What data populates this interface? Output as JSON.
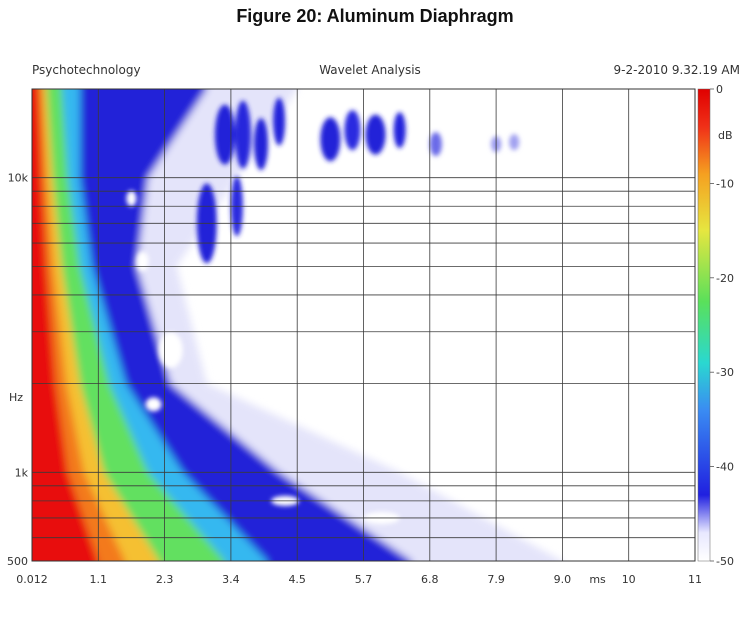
{
  "figure_title": "Figure 20: Aluminum Diaphragm",
  "header": {
    "left": "Psychotechnology",
    "center": "Wavelet Analysis",
    "right": "9-2-2010 9.32.19 AM"
  },
  "colors": {
    "scale": [
      "#ffffff",
      "#1a1adc",
      "#2f7cf0",
      "#2ad8c8",
      "#5be05a",
      "#e0e63a",
      "#f5a020",
      "#f03018",
      "#e00000"
    ]
  },
  "chart_data": {
    "type": "heatmap",
    "title": "",
    "xlabel": "ms",
    "ylabel": "Hz",
    "x_ticks": [
      {
        "value": 0.012,
        "label": "0.012"
      },
      {
        "value": 1.1,
        "label": "1.1"
      },
      {
        "value": 2.3,
        "label": "2.3"
      },
      {
        "value": 3.4,
        "label": "3.4"
      },
      {
        "value": 4.5,
        "label": "4.5"
      },
      {
        "value": 5.7,
        "label": "5.7"
      },
      {
        "value": 6.8,
        "label": "6.8"
      },
      {
        "value": 7.9,
        "label": "7.9"
      },
      {
        "value": 9.0,
        "label": "9.0"
      },
      {
        "value": 10,
        "label": "10"
      },
      {
        "value": 11,
        "label": "11"
      }
    ],
    "xlim": [
      0.012,
      11
    ],
    "y_tick_labels": [
      {
        "value": 500,
        "label": "500"
      },
      {
        "value": 1000,
        "label": "1k"
      },
      {
        "value": 10000,
        "label": "10k"
      }
    ],
    "y_gridlines": [
      600,
      700,
      800,
      900,
      1000,
      2000,
      3000,
      4000,
      5000,
      6000,
      7000,
      8000,
      9000,
      10000
    ],
    "ylim": [
      500,
      20000
    ],
    "y_scale": "log",
    "colorbar": {
      "label": "dB",
      "range": [
        -50,
        0
      ],
      "ticks": [
        {
          "value": 0,
          "label": "0"
        },
        {
          "value": -10,
          "label": "-10"
        },
        {
          "value": -20,
          "label": "-20"
        },
        {
          "value": -30,
          "label": "-30"
        },
        {
          "value": -40,
          "label": "-40"
        },
        {
          "value": -50,
          "label": "-50"
        }
      ]
    },
    "decay_contour_ms": [
      {
        "freq": 500,
        "t_-10dB": 2.2,
        "t_-20dB": 3.3,
        "t_-30dB": 4.0,
        "t_-40dB": 6.5,
        "t_-50dB": 9.0
      },
      {
        "freq": 1000,
        "t_-10dB": 1.2,
        "t_-20dB": 2.0,
        "t_-30dB": 2.6,
        "t_-40dB": 4.2,
        "t_-50dB": 6.3
      },
      {
        "freq": 2000,
        "t_-10dB": 0.8,
        "t_-20dB": 1.3,
        "t_-30dB": 1.6,
        "t_-40dB": 2.4,
        "t_-50dB": 3.0
      },
      {
        "freq": 5000,
        "t_-10dB": 0.5,
        "t_-20dB": 0.8,
        "t_-30dB": 1.0,
        "t_-40dB": 1.8,
        "t_-50dB": 2.5
      },
      {
        "freq": 10000,
        "t_-10dB": 0.35,
        "t_-20dB": 0.6,
        "t_-30dB": 0.8,
        "t_-40dB": 2.0,
        "t_-50dB": 3.5
      },
      {
        "freq": 20000,
        "t_-10dB": 0.25,
        "t_-20dB": 0.5,
        "t_-30dB": 0.8,
        "t_-40dB": 3.0,
        "t_-50dB": 4.5
      }
    ],
    "footer_text": ""
  }
}
